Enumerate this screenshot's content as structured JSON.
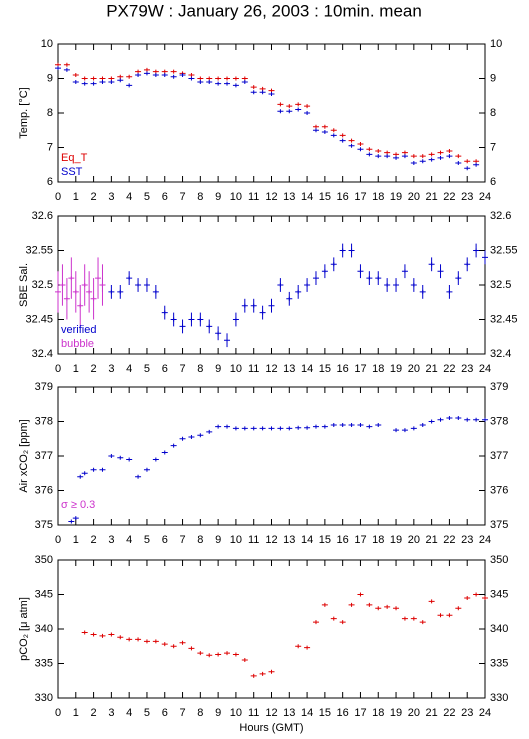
{
  "title": "PX79W : January 26, 2003 : 10min. mean",
  "chart_data": [
    {
      "type": "scatter",
      "ylabel": "Temp. [°C]",
      "xlim": [
        0,
        24
      ],
      "ylim": [
        6,
        10
      ],
      "xticks": [
        0,
        1,
        2,
        3,
        4,
        5,
        6,
        7,
        8,
        9,
        10,
        11,
        12,
        13,
        14,
        15,
        16,
        17,
        18,
        19,
        20,
        21,
        22,
        23,
        24
      ],
      "yticks": [
        6,
        7,
        8,
        9,
        10
      ],
      "legend": "lower left",
      "series": [
        {
          "name": "Eq_T",
          "color": "#dd0000",
          "x": [
            0,
            0.5,
            1,
            1.5,
            2,
            2.5,
            3,
            3.5,
            4,
            4.5,
            5,
            5.5,
            6,
            6.5,
            7,
            7.5,
            8,
            8.5,
            9,
            9.5,
            10,
            10.5,
            11,
            11.5,
            12,
            12.5,
            13,
            13.5,
            14,
            14.5,
            15,
            15.5,
            16,
            16.5,
            17,
            17.5,
            18,
            18.5,
            19,
            19.5,
            20,
            20.5,
            21,
            21.5,
            22,
            22.5,
            23,
            23.5
          ],
          "values": [
            9.4,
            9.4,
            9.1,
            9.0,
            9.0,
            9.0,
            9.0,
            9.05,
            9.05,
            9.2,
            9.25,
            9.2,
            9.2,
            9.2,
            9.15,
            9.1,
            9.0,
            9.0,
            9.0,
            9.0,
            9.0,
            9.0,
            8.75,
            8.7,
            8.65,
            8.25,
            8.2,
            8.25,
            8.2,
            7.6,
            7.6,
            7.5,
            7.35,
            7.2,
            7.1,
            6.95,
            6.9,
            6.85,
            6.8,
            6.85,
            6.75,
            6.75,
            6.8,
            6.85,
            6.9,
            6.75,
            6.6,
            6.6
          ]
        },
        {
          "name": "SST",
          "color": "#0000cc",
          "x": [
            0,
            0.5,
            1,
            1.5,
            2,
            2.5,
            3,
            3.5,
            4,
            4.5,
            5,
            5.5,
            6,
            6.5,
            7,
            7.5,
            8,
            8.5,
            9,
            9.5,
            10,
            10.5,
            11,
            11.5,
            12,
            12.5,
            13,
            13.5,
            14,
            14.5,
            15,
            15.5,
            16,
            16.5,
            17,
            17.5,
            18,
            18.5,
            19,
            19.5,
            20,
            20.5,
            21,
            21.5,
            22,
            22.5,
            23,
            23.5
          ],
          "values": [
            9.3,
            9.25,
            8.9,
            8.85,
            8.85,
            8.9,
            8.9,
            8.95,
            8.8,
            9.1,
            9.15,
            9.1,
            9.1,
            9.05,
            9.1,
            9.0,
            8.9,
            8.9,
            8.85,
            8.85,
            8.8,
            8.9,
            8.6,
            8.6,
            8.55,
            8.05,
            8.05,
            8.1,
            8.0,
            7.5,
            7.45,
            7.35,
            7.2,
            7.05,
            6.95,
            6.8,
            6.75,
            6.75,
            6.7,
            6.75,
            6.55,
            6.6,
            6.65,
            6.7,
            6.75,
            6.55,
            6.4,
            6.5
          ]
        }
      ]
    },
    {
      "type": "scatter",
      "ylabel": "SBE Sal.",
      "xlim": [
        0,
        24
      ],
      "ylim": [
        32.4,
        32.6
      ],
      "xticks": [
        0,
        1,
        2,
        3,
        4,
        5,
        6,
        7,
        8,
        9,
        10,
        11,
        12,
        13,
        14,
        15,
        16,
        17,
        18,
        19,
        20,
        21,
        22,
        23,
        24
      ],
      "yticks": [
        32.4,
        32.45,
        32.5,
        32.55,
        32.6
      ],
      "legend": "lower left",
      "series": [
        {
          "name": "verified",
          "color": "#0000cc",
          "error": 0.01,
          "x": [
            2.5,
            3,
            3.5,
            4,
            4.5,
            5,
            5.5,
            6,
            6.5,
            7,
            7.5,
            8,
            8.5,
            9,
            9.5,
            10,
            10.5,
            11,
            11.5,
            12,
            12.5,
            13,
            13.5,
            14,
            14.5,
            15,
            15.5,
            16,
            16.5,
            17,
            17.5,
            18,
            18.5,
            19,
            19.5,
            20,
            20.5,
            21,
            21.5,
            22,
            22.5,
            23,
            23.5,
            24
          ],
          "values": [
            32.5,
            32.49,
            32.49,
            32.51,
            32.5,
            32.5,
            32.49,
            32.46,
            32.45,
            32.44,
            32.45,
            32.45,
            32.44,
            32.43,
            32.42,
            32.45,
            32.47,
            32.47,
            32.46,
            32.47,
            32.5,
            32.48,
            32.49,
            32.5,
            32.51,
            32.52,
            32.53,
            32.55,
            32.55,
            32.52,
            32.51,
            32.51,
            32.5,
            32.5,
            32.52,
            32.5,
            32.49,
            32.53,
            32.52,
            32.49,
            32.51,
            32.53,
            32.55,
            32.54
          ]
        },
        {
          "name": "bubble",
          "color": "#cc33cc",
          "error": 0.03,
          "x": [
            0,
            0.25,
            0.5,
            0.75,
            1,
            1.25,
            1.5,
            1.75,
            2,
            2.25,
            2.5
          ],
          "values": [
            32.49,
            32.5,
            32.48,
            32.51,
            32.49,
            32.47,
            32.5,
            32.49,
            32.48,
            32.51,
            32.5
          ]
        }
      ]
    },
    {
      "type": "scatter",
      "ylabel": "Air xCO₂ [ppm]",
      "xlim": [
        0,
        24
      ],
      "ylim": [
        375,
        379
      ],
      "xticks": [
        0,
        1,
        2,
        3,
        4,
        5,
        6,
        7,
        8,
        9,
        10,
        11,
        12,
        13,
        14,
        15,
        16,
        17,
        18,
        19,
        20,
        21,
        22,
        23,
        24
      ],
      "yticks": [
        375,
        376,
        377,
        378,
        379
      ],
      "annotation": {
        "text": "σ ≥ 0.3",
        "color": "#cc33cc"
      },
      "series": [
        {
          "color": "#0000cc",
          "x": [
            0.75,
            1,
            1.25,
            1.5,
            2,
            2.5,
            3,
            3.5,
            4,
            4.5,
            5,
            5.5,
            6,
            6.5,
            7,
            7.5,
            8,
            8.5,
            9,
            9.5,
            10,
            10.5,
            11,
            11.5,
            12,
            12.5,
            13,
            13.5,
            14,
            14.5,
            15,
            15.5,
            16,
            16.5,
            17,
            17.5,
            18,
            19,
            19.5,
            20,
            20.5,
            21,
            21.5,
            22,
            22.5,
            23,
            23.5,
            24
          ],
          "values": [
            375.1,
            375.2,
            376.4,
            376.5,
            376.6,
            376.6,
            377.0,
            376.95,
            376.9,
            376.4,
            376.6,
            376.9,
            377.1,
            377.3,
            377.5,
            377.55,
            377.6,
            377.7,
            377.85,
            377.85,
            377.8,
            377.8,
            377.8,
            377.8,
            377.8,
            377.8,
            377.8,
            377.82,
            377.82,
            377.85,
            377.85,
            377.9,
            377.9,
            377.9,
            377.9,
            377.85,
            377.9,
            377.75,
            377.75,
            377.8,
            377.9,
            378.0,
            378.05,
            378.1,
            378.1,
            378.05,
            378.05,
            378.05
          ]
        }
      ]
    },
    {
      "type": "scatter",
      "ylabel": "pCO₂ [μ atm]",
      "xlabel": "Hours (GMT)",
      "xlim": [
        0,
        24
      ],
      "ylim": [
        330,
        350
      ],
      "xticks": [
        0,
        1,
        2,
        3,
        4,
        5,
        6,
        7,
        8,
        9,
        10,
        11,
        12,
        13,
        14,
        15,
        16,
        17,
        18,
        19,
        20,
        21,
        22,
        23,
        24
      ],
      "yticks": [
        330,
        335,
        340,
        345,
        350
      ],
      "series": [
        {
          "color": "#dd0000",
          "x": [
            1.5,
            2,
            2.5,
            3,
            3.5,
            4,
            4.5,
            5,
            5.5,
            6,
            6.5,
            7,
            7.5,
            8,
            8.5,
            9,
            9.5,
            10,
            10.5,
            11,
            11.5,
            12,
            13.5,
            14,
            14.5,
            15,
            15.5,
            16,
            16.5,
            17,
            17.5,
            18,
            18.5,
            19,
            19.5,
            20,
            20.5,
            21,
            21.5,
            22,
            22.5,
            23,
            23.5,
            24
          ],
          "values": [
            339.5,
            339.2,
            339.0,
            339.2,
            338.8,
            338.5,
            338.5,
            338.2,
            338.2,
            337.8,
            337.5,
            338.0,
            337.2,
            336.5,
            336.2,
            336.3,
            336.5,
            336.3,
            335.5,
            333.2,
            333.5,
            333.8,
            337.5,
            337.3,
            341.0,
            343.5,
            341.5,
            341.0,
            343.5,
            345.0,
            343.5,
            343.0,
            343.2,
            343.0,
            341.5,
            341.5,
            341.0,
            344.0,
            342.0,
            342.0,
            343.0,
            344.5,
            345.0,
            344.5
          ]
        }
      ]
    }
  ]
}
